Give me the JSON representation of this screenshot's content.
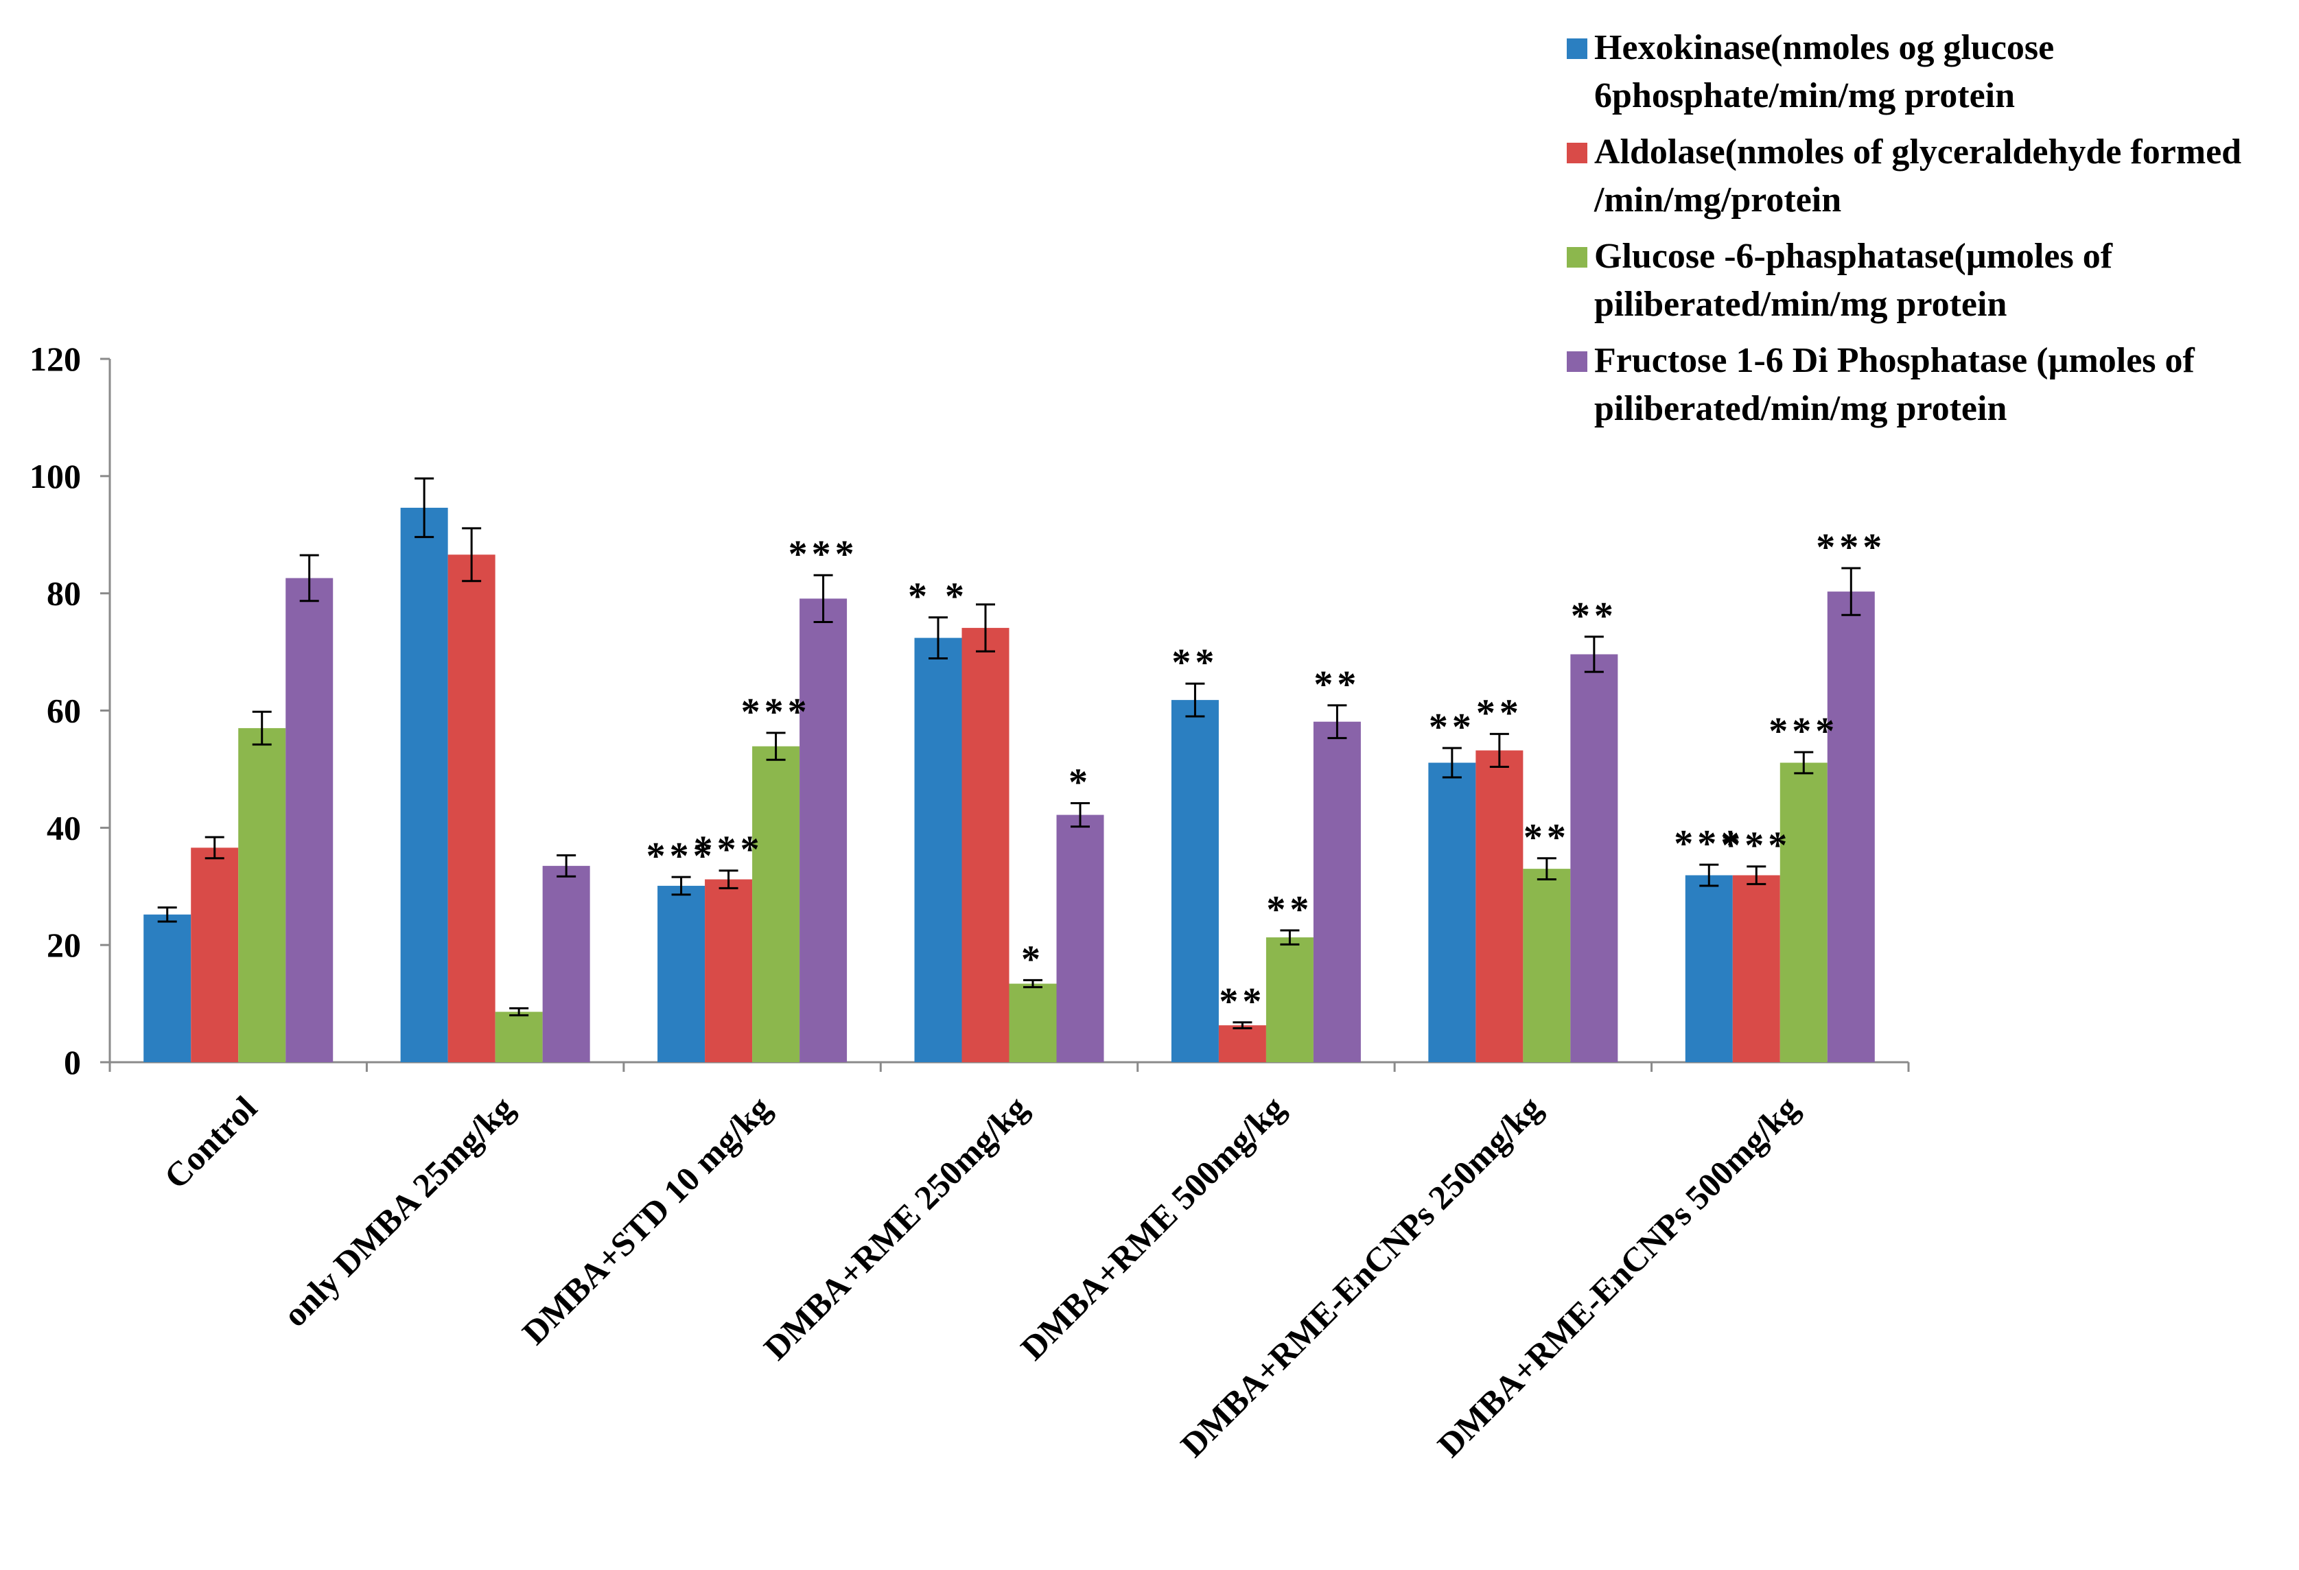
{
  "chart_data": {
    "type": "bar",
    "title": "",
    "xlabel": "",
    "ylabel": "",
    "ylim": [
      0,
      120
    ],
    "yticks": [
      "0",
      "20",
      "40",
      "60",
      "80",
      "100",
      "120"
    ],
    "grid": false,
    "legend_position": "top-right",
    "categories": [
      "Control",
      "only DMBA 25mg/kg",
      "DMBA+STD 10 mg/kg",
      "DMBA+RME 250mg/kg",
      "DMBA+RME 500mg/kg",
      "DMBA+RME-EnCNPs 250mg/kg",
      "DMBA+RME-EnCNPs 500mg/kg"
    ],
    "series": [
      {
        "name": "Hexokinase(nmoles og glucose 6phosphate/min/mg protein",
        "legend_lines": [
          "Hexokinase(nmoles og glucose",
          "6phosphate/min/mg protein"
        ],
        "color": "#2b7fc1",
        "values": [
          25.2,
          94.6,
          30.1,
          72.4,
          61.8,
          51.1,
          31.9
        ],
        "errors": [
          1.2,
          5.0,
          1.5,
          3.5,
          2.8,
          2.5,
          1.8
        ],
        "annotations": [
          "",
          "",
          "***",
          "* *",
          "**",
          "**",
          "***"
        ]
      },
      {
        "name": "Aldolase(nmoles of glyceraldehyde formed /min/mg/protein",
        "legend_lines": [
          "Aldolase(nmoles of glyceraldehyde formed",
          "/min/mg/protein"
        ],
        "color": "#d94b48",
        "values": [
          36.6,
          86.6,
          31.2,
          74.1,
          6.3,
          53.2,
          31.9
        ],
        "errors": [
          1.8,
          4.5,
          1.5,
          4.0,
          0.5,
          2.8,
          1.5
        ],
        "annotations": [
          "",
          "",
          "***",
          "",
          "**",
          "**",
          "***"
        ]
      },
      {
        "name": "Glucose -6-phasphatase(µmoles of piliberated/min/mg protein",
        "legend_lines": [
          "Glucose -6-phasphatase(µmoles of",
          "piliberated/min/mg protein"
        ],
        "color": "#8cb74d",
        "values": [
          57.0,
          8.6,
          53.9,
          13.4,
          21.3,
          33.0,
          51.1
        ],
        "errors": [
          2.8,
          0.6,
          2.3,
          0.6,
          1.2,
          1.8,
          1.8
        ],
        "annotations": [
          "",
          "",
          "***",
          "*",
          "**",
          "**",
          "***"
        ]
      },
      {
        "name": "Fructose 1-6 Di Phosphatase (µmoles of piliberated/min/mg protein",
        "legend_lines": [
          "Fructose 1-6 Di Phosphatase (µmoles of",
          "piliberated/min/mg protein"
        ],
        "color": "#8963a9",
        "values": [
          82.6,
          33.5,
          79.1,
          42.2,
          58.1,
          69.6,
          80.3
        ],
        "errors": [
          3.9,
          1.8,
          4.0,
          2.0,
          2.8,
          3.0,
          4.0
        ],
        "annotations": [
          "",
          "",
          "***",
          "*",
          "**",
          "**",
          "***"
        ]
      }
    ]
  }
}
